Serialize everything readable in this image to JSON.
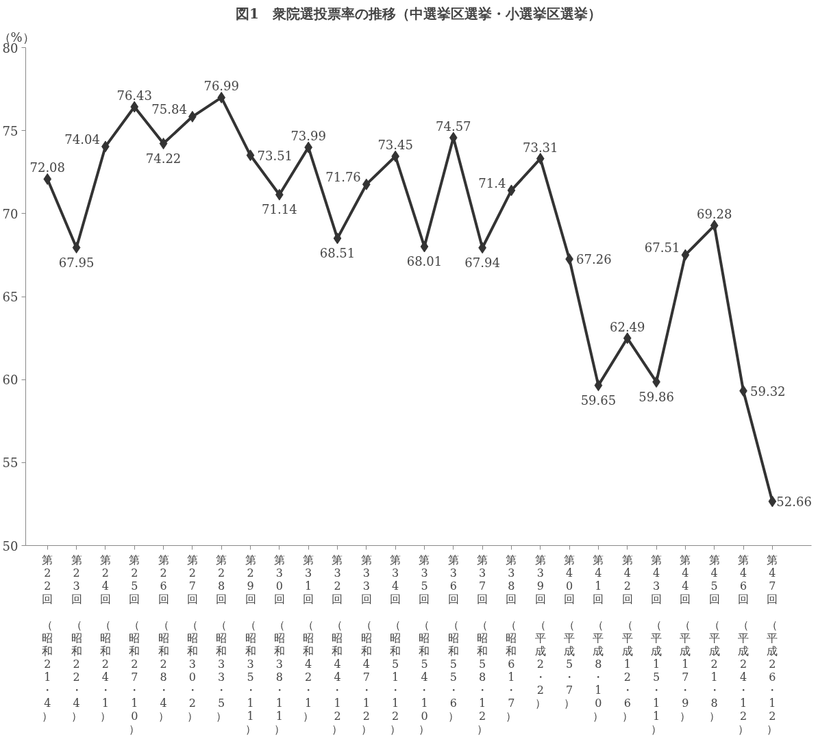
{
  "chart_data": {
    "type": "line",
    "title": "図1　衆院選投票率の推移（中選挙区選挙・小選挙区選挙）",
    "ylabel": "（%）",
    "categories": [
      "第22回（昭和21・4）",
      "第23回（昭和22・4）",
      "第24回（昭和24・1）",
      "第25回（昭和27・10）",
      "第26回（昭和28・4）",
      "第27回（昭和30・2）",
      "第28回（昭和33・5）",
      "第29回（昭和35・11）",
      "第30回（昭和38・11）",
      "第31回（昭和42・1）",
      "第32回（昭和44・12）",
      "第33回（昭和47・12）",
      "第34回（昭和51・12）",
      "第35回（昭和54・10）",
      "第36回（昭和55・6）",
      "第37回（昭和58・12）",
      "第38回（昭和61・7）",
      "第39回（平成2・2）",
      "第40回（平成5・7）",
      "第41回（平成8・10）",
      "第42回（平成12・6）",
      "第43回（平成15・11）",
      "第44回（平成17・9）",
      "第45回（平成21・8）",
      "第46回（平成24・12）",
      "第47回（平成26・12）"
    ],
    "series": [
      {
        "color": "#333333",
        "values": [
          72.08,
          67.95,
          74.04,
          76.43,
          74.22,
          75.84,
          76.99,
          73.51,
          71.14,
          73.99,
          68.51,
          71.76,
          73.45,
          68.01,
          74.57,
          67.94,
          71.4,
          73.31,
          67.26,
          59.65,
          62.49,
          59.86,
          67.51,
          69.28,
          59.32,
          52.66
        ]
      }
    ],
    "ylim": [
      50,
      80
    ],
    "yticks": [
      50,
      55,
      60,
      65,
      70,
      75,
      80
    ],
    "grid": false,
    "marker": "diamond",
    "line_style": "solid",
    "data_labels": true
  }
}
